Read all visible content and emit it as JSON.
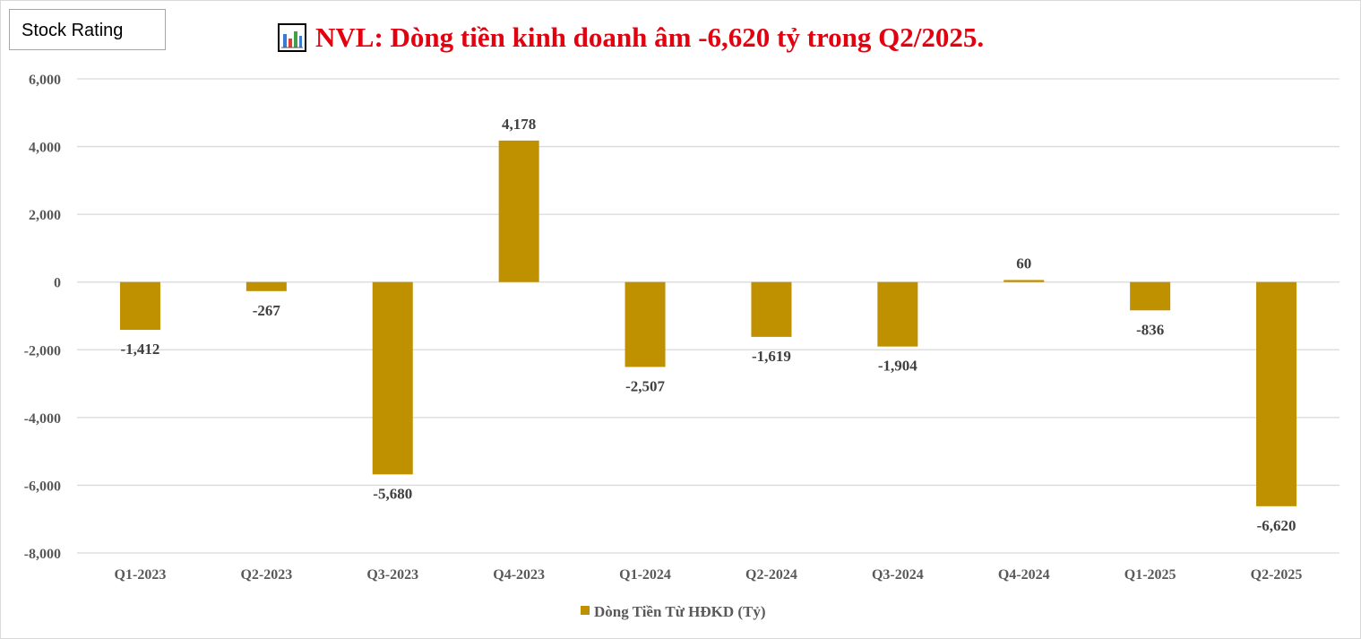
{
  "badge": {
    "label": "Stock Rating"
  },
  "title": {
    "icon": "bar-chart-icon",
    "text": "NVL: Dòng tiền kinh doanh âm -6,620 tỷ trong Q2/2025."
  },
  "colors": {
    "bar": "#bf9000",
    "title": "#e3000f",
    "grid": "#d9d9d9"
  },
  "chart_data": {
    "type": "bar",
    "categories": [
      "Q1-2023",
      "Q2-2023",
      "Q3-2023",
      "Q4-2023",
      "Q1-2024",
      "Q2-2024",
      "Q3-2024",
      "Q4-2024",
      "Q1-2025",
      "Q2-2025"
    ],
    "series": [
      {
        "name": "Dòng Tiền Từ HĐKD (Tỷ)",
        "values": [
          -1412,
          -267,
          -5680,
          4178,
          -2507,
          -1619,
          -1904,
          60,
          -836,
          -6620
        ]
      }
    ],
    "data_labels": [
      "-1,412",
      "-267",
      "-5,680",
      "4,178",
      "-2,507",
      "-1,619",
      "-1,904",
      "60",
      "-836",
      "-6,620"
    ],
    "ylim": [
      -8000,
      6000
    ],
    "yticks": [
      6000,
      4000,
      2000,
      0,
      -2000,
      -4000,
      -6000,
      -8000
    ],
    "ytick_labels": [
      "6,000",
      "4,000",
      "2,000",
      "0",
      "-2,000",
      "-4,000",
      "-6,000",
      "-8,000"
    ],
    "grid": true,
    "legend_position": "bottom"
  }
}
